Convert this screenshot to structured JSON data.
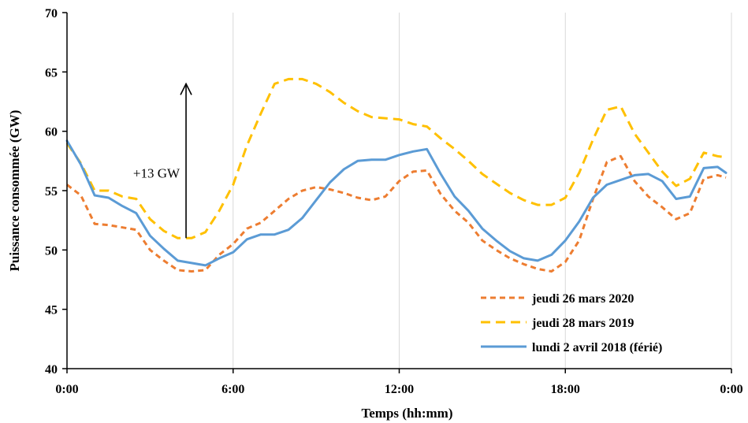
{
  "chart_data": {
    "type": "line",
    "xlabel": "Temps (hh:mm)",
    "ylabel": "Puissance consommée (GW)",
    "xlim": [
      0,
      24
    ],
    "ylim": [
      40,
      70
    ],
    "x_ticks": [
      0,
      6,
      12,
      18,
      24
    ],
    "x_tick_labels": [
      "0:00",
      "6:00",
      "12:00",
      "18:00",
      "0:00"
    ],
    "y_ticks": [
      40,
      45,
      50,
      55,
      60,
      65,
      70
    ],
    "grid": "vertical",
    "legend_position": "bottom-right",
    "annotation": {
      "text": "+13 GW",
      "arrow_x": 4.3,
      "arrow_from": 51,
      "arrow_to": 64
    },
    "series": [
      {
        "name": "jeudi 26 mars 2020",
        "color": "#ED7D31",
        "style": "dashed",
        "x": [
          0,
          0.5,
          1,
          1.5,
          2,
          2.5,
          3,
          3.5,
          4,
          4.5,
          5,
          5.5,
          6,
          6.5,
          7,
          7.5,
          8,
          8.5,
          9,
          9.5,
          10,
          10.5,
          11,
          11.5,
          12,
          12.5,
          13,
          13.5,
          14,
          14.5,
          15,
          15.5,
          16,
          16.5,
          17,
          17.5,
          18,
          18.5,
          19,
          19.5,
          20,
          20.5,
          21,
          21.5,
          22,
          22.5,
          23,
          23.5,
          23.8
        ],
        "y": [
          55.5,
          54.6,
          52.2,
          52.1,
          51.9,
          51.7,
          50.0,
          49.1,
          48.3,
          48.2,
          48.3,
          49.6,
          50.5,
          51.8,
          52.3,
          53.3,
          54.3,
          55.0,
          55.3,
          55.1,
          54.8,
          54.4,
          54.2,
          54.5,
          55.8,
          56.6,
          56.7,
          54.7,
          53.3,
          52.3,
          50.8,
          50.0,
          49.3,
          48.8,
          48.4,
          48.2,
          49.0,
          50.8,
          54.3,
          57.4,
          57.9,
          55.8,
          54.5,
          53.6,
          52.6,
          53.1,
          56.0,
          56.3,
          56.1
        ]
      },
      {
        "name": "jeudi 28 mars 2019",
        "color": "#FFC000",
        "style": "dashed",
        "x": [
          0,
          0.5,
          1,
          1.5,
          2,
          2.5,
          3,
          3.5,
          4,
          4.5,
          5,
          5.5,
          6,
          6.5,
          7,
          7.5,
          8,
          8.5,
          9,
          9.5,
          10,
          10.5,
          11,
          11.5,
          12,
          12.5,
          13,
          13.5,
          14,
          14.5,
          15,
          15.5,
          16,
          16.5,
          17,
          17.5,
          18,
          18.5,
          19,
          19.5,
          20,
          20.5,
          21,
          21.5,
          22,
          22.5,
          23,
          23.5,
          23.8
        ],
        "y": [
          59.0,
          57.3,
          55.0,
          55.0,
          54.5,
          54.3,
          52.6,
          51.6,
          51.0,
          51.0,
          51.5,
          53.3,
          55.5,
          58.8,
          61.5,
          64.0,
          64.4,
          64.4,
          64.0,
          63.3,
          62.4,
          61.7,
          61.2,
          61.1,
          61.0,
          60.6,
          60.4,
          59.4,
          58.5,
          57.5,
          56.4,
          55.6,
          54.8,
          54.2,
          53.8,
          53.8,
          54.4,
          56.5,
          59.3,
          61.8,
          62.1,
          59.8,
          58.2,
          56.6,
          55.4,
          56.0,
          58.2,
          57.9,
          57.8
        ]
      },
      {
        "name": "lundi 2 avril 2018 (férié)",
        "color": "#5B9BD5",
        "style": "solid",
        "x": [
          0,
          0.5,
          1,
          1.5,
          2,
          2.5,
          3,
          3.5,
          4,
          4.5,
          5,
          5.5,
          6,
          6.5,
          7,
          7.5,
          8,
          8.5,
          9,
          9.5,
          10,
          10.5,
          11,
          11.5,
          12,
          12.5,
          13,
          13.5,
          14,
          14.5,
          15,
          15.5,
          16,
          16.5,
          17,
          17.5,
          18,
          18.5,
          19,
          19.5,
          20,
          20.5,
          21,
          21.5,
          22,
          22.5,
          23,
          23.5,
          23.8
        ],
        "y": [
          59.2,
          57.2,
          54.6,
          54.4,
          53.7,
          53.1,
          51.2,
          50.1,
          49.1,
          48.9,
          48.7,
          49.3,
          49.8,
          50.9,
          51.3,
          51.3,
          51.7,
          52.7,
          54.2,
          55.7,
          56.8,
          57.5,
          57.6,
          57.6,
          58.0,
          58.3,
          58.5,
          56.4,
          54.5,
          53.3,
          51.8,
          50.8,
          49.9,
          49.3,
          49.1,
          49.6,
          50.8,
          52.4,
          54.4,
          55.5,
          55.9,
          56.3,
          56.4,
          55.8,
          54.3,
          54.5,
          56.9,
          57.0,
          56.5
        ]
      }
    ]
  }
}
